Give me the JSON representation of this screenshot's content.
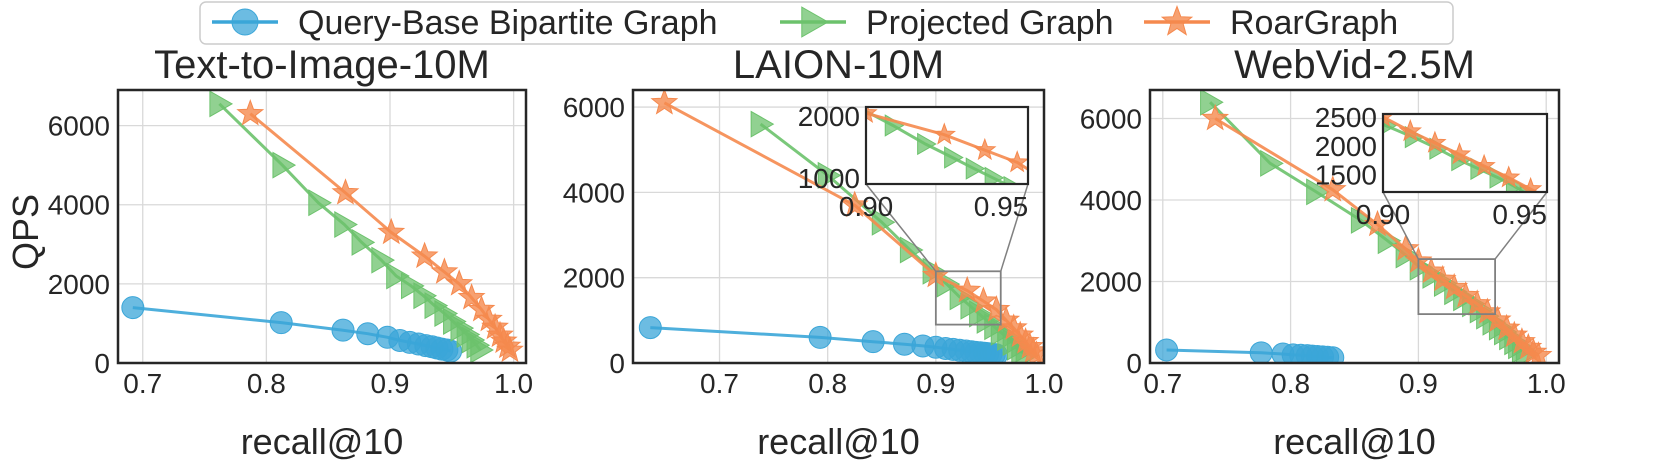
{
  "legend": {
    "entries": [
      {
        "label": "Query-Base Bipartite Graph",
        "marker": "circle",
        "color": "#3ba6d8"
      },
      {
        "label": "Projected Graph",
        "marker": "triangle-right",
        "color": "#6cc26c"
      },
      {
        "label": "RoarGraph",
        "marker": "star",
        "color": "#f5894e"
      }
    ]
  },
  "ylabel": "QPS",
  "chart_data": [
    {
      "type": "line",
      "title": "Text-to-Image-10M",
      "xlabel": "recall@10",
      "ylabel": "QPS",
      "xlim": [
        0.68,
        1.01
      ],
      "ylim": [
        0,
        6900
      ],
      "xticks": [
        "0.7",
        "0.8",
        "0.9",
        "1.0"
      ],
      "yticks": [
        "0",
        "2000",
        "4000",
        "6000"
      ],
      "grid": true,
      "series": [
        {
          "name": "Query-Base Bipartite Graph",
          "x": [
            0.692,
            0.812,
            0.862,
            0.882,
            0.898,
            0.908,
            0.916,
            0.923,
            0.929,
            0.934,
            0.938,
            0.942,
            0.946,
            0.949
          ],
          "y": [
            1400,
            1020,
            830,
            740,
            650,
            570,
            520,
            480,
            440,
            410,
            380,
            350,
            330,
            300
          ]
        },
        {
          "name": "Projected Graph",
          "x": [
            0.762,
            0.813,
            0.842,
            0.863,
            0.877,
            0.893,
            0.905,
            0.917,
            0.927,
            0.936,
            0.944,
            0.951,
            0.957,
            0.962,
            0.966,
            0.97,
            0.973
          ],
          "y": [
            6550,
            5000,
            4050,
            3500,
            3050,
            2600,
            2200,
            1950,
            1700,
            1450,
            1250,
            1050,
            880,
            720,
            580,
            450,
            330
          ]
        },
        {
          "name": "RoarGraph",
          "x": [
            0.787,
            0.864,
            0.901,
            0.928,
            0.944,
            0.956,
            0.966,
            0.974,
            0.98,
            0.985,
            0.989,
            0.992,
            0.995,
            0.997
          ],
          "y": [
            6300,
            4300,
            3300,
            2700,
            2300,
            2000,
            1650,
            1350,
            1100,
            900,
            700,
            550,
            420,
            320
          ]
        }
      ]
    },
    {
      "type": "line",
      "title": "LAION-10M",
      "xlabel": "recall@10",
      "ylabel": "",
      "xlim": [
        0.62,
        1.0
      ],
      "ylim": [
        0,
        6400
      ],
      "xticks": [
        "0.7",
        "0.8",
        "0.9",
        "1.0"
      ],
      "yticks": [
        "0",
        "2000",
        "4000",
        "6000"
      ],
      "grid": true,
      "series": [
        {
          "name": "Query-Base Bipartite Graph",
          "x": [
            0.636,
            0.793,
            0.842,
            0.871,
            0.888,
            0.9,
            0.909,
            0.916,
            0.922,
            0.928,
            0.933,
            0.937,
            0.941,
            0.945,
            0.948,
            0.951,
            0.954,
            0.956
          ],
          "y": [
            830,
            600,
            500,
            440,
            400,
            370,
            340,
            320,
            300,
            280,
            265,
            250,
            240,
            230,
            220,
            210,
            200,
            190
          ]
        },
        {
          "name": "Projected Graph",
          "x": [
            0.738,
            0.8,
            0.85,
            0.876,
            0.897,
            0.91,
            0.922,
            0.932,
            0.94,
            0.947,
            0.954,
            0.96,
            0.966,
            0.971,
            0.975,
            0.979,
            0.983
          ],
          "y": [
            5600,
            4400,
            3300,
            2650,
            2150,
            1850,
            1550,
            1330,
            1150,
            1000,
            850,
            720,
            600,
            480,
            370,
            270,
            180
          ]
        },
        {
          "name": "RoarGraph",
          "x": [
            0.649,
            0.825,
            0.9,
            0.929,
            0.944,
            0.956,
            0.965,
            0.972,
            0.978,
            0.983,
            0.987,
            0.99,
            0.993
          ],
          "y": [
            6100,
            3700,
            2050,
            1700,
            1450,
            1250,
            1000,
            820,
            650,
            500,
            380,
            280,
            190
          ]
        }
      ],
      "inset": {
        "xlim": [
          0.9,
          0.96
        ],
        "ylim": [
          900,
          2150
        ],
        "xticks": [
          "0.90",
          "0.95"
        ],
        "yticks": [
          "1000",
          "2000"
        ],
        "zoom_region": {
          "x": [
            0.9,
            0.96
          ],
          "y": [
            900,
            2150
          ]
        }
      }
    },
    {
      "type": "line",
      "title": "WebVid-2.5M",
      "xlabel": "recall@10",
      "ylabel": "",
      "xlim": [
        0.69,
        1.01
      ],
      "ylim": [
        0,
        6700
      ],
      "xticks": [
        "0.7",
        "0.8",
        "0.9",
        "1.0"
      ],
      "yticks": [
        "0",
        "2000",
        "4000",
        "6000"
      ],
      "grid": true,
      "series": [
        {
          "name": "Query-Base Bipartite Graph",
          "x": [
            0.703,
            0.777,
            0.794,
            0.802,
            0.808,
            0.813,
            0.817,
            0.821,
            0.825,
            0.829,
            0.833
          ],
          "y": [
            320,
            250,
            220,
            200,
            190,
            180,
            170,
            160,
            150,
            140,
            130
          ]
        },
        {
          "name": "Projected Graph",
          "x": [
            0.737,
            0.784,
            0.82,
            0.855,
            0.876,
            0.89,
            0.901,
            0.911,
            0.92,
            0.928,
            0.935,
            0.942,
            0.948,
            0.953,
            0.958,
            0.963,
            0.967,
            0.971,
            0.975,
            0.978,
            0.981,
            0.984
          ],
          "y": [
            6400,
            4900,
            4200,
            3500,
            3000,
            2650,
            2350,
            2150,
            1950,
            1750,
            1600,
            1450,
            1300,
            1150,
            1000,
            880,
            760,
            640,
            520,
            420,
            320,
            230
          ]
        },
        {
          "name": "RoarGraph",
          "x": [
            0.741,
            0.833,
            0.868,
            0.89,
            0.9,
            0.91,
            0.919,
            0.928,
            0.937,
            0.946,
            0.954,
            0.962,
            0.969,
            0.975,
            0.981,
            0.986,
            0.99,
            0.994
          ],
          "y": [
            6000,
            4250,
            3400,
            2800,
            2500,
            2250,
            2050,
            1850,
            1650,
            1450,
            1250,
            1050,
            850,
            680,
            520,
            380,
            260,
            180
          ]
        }
      ],
      "inset": {
        "xlim": [
          0.9,
          0.96
        ],
        "ylim": [
          1200,
          2550
        ],
        "xticks": [
          "0.90",
          "0.95"
        ],
        "yticks": [
          "1500",
          "2000",
          "2500"
        ],
        "zoom_region": {
          "x": [
            0.9,
            0.96
          ],
          "y": [
            1200,
            2550
          ]
        }
      }
    }
  ]
}
